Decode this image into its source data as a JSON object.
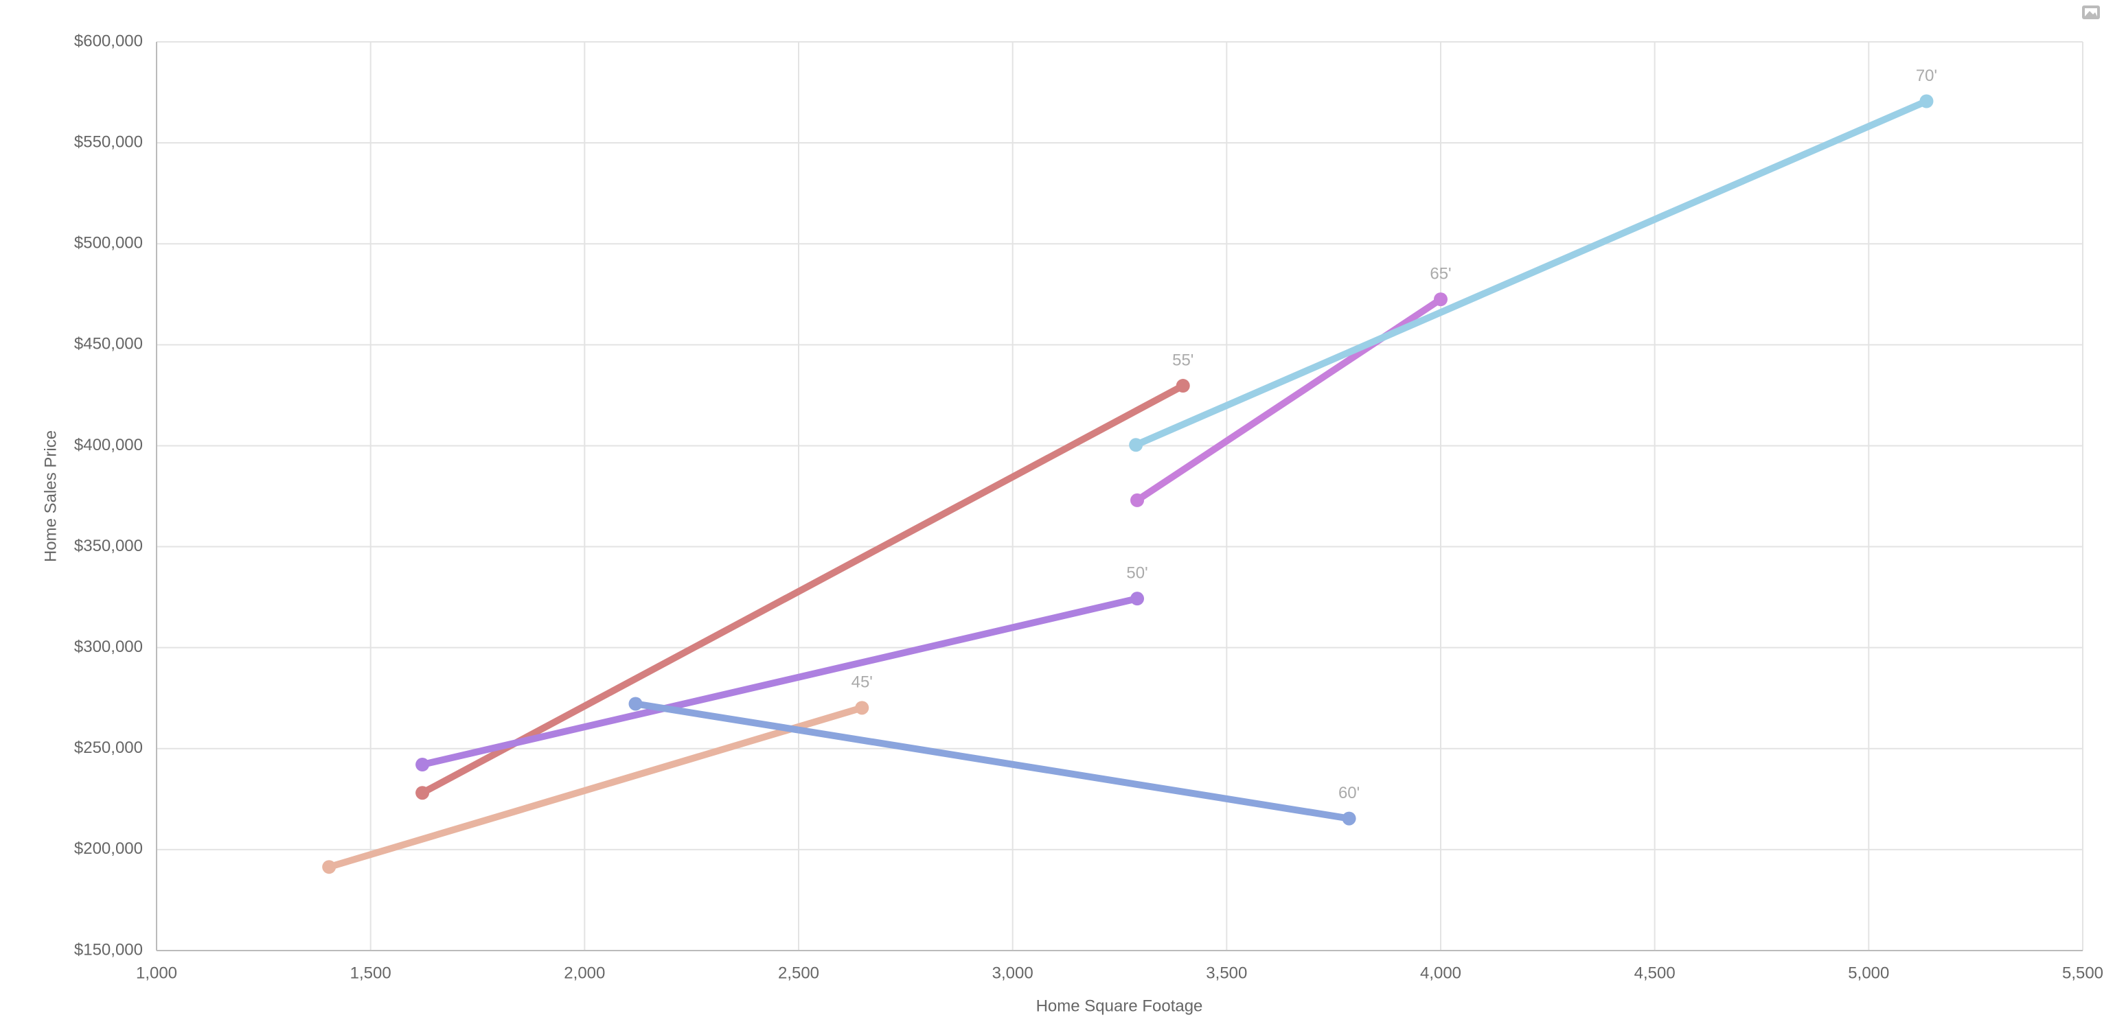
{
  "chart_data": {
    "type": "line",
    "xlabel": "Home Square Footage",
    "ylabel": "Home Sales Price",
    "xlim": [
      1000,
      5500
    ],
    "ylim": [
      150000,
      600000
    ],
    "xticks": [
      {
        "value": 1000,
        "label": "1,000"
      },
      {
        "value": 1500,
        "label": "1,500"
      },
      {
        "value": 2000,
        "label": "2,000"
      },
      {
        "value": 2500,
        "label": "2,500"
      },
      {
        "value": 3000,
        "label": "3,000"
      },
      {
        "value": 3500,
        "label": "3,500"
      },
      {
        "value": 4000,
        "label": "4,000"
      },
      {
        "value": 4500,
        "label": "4,500"
      },
      {
        "value": 5000,
        "label": "5,000"
      },
      {
        "value": 5500,
        "label": "5,500"
      }
    ],
    "yticks": [
      {
        "value": 150000,
        "label": "$150,000"
      },
      {
        "value": 200000,
        "label": "$200,000"
      },
      {
        "value": 250000,
        "label": "$250,000"
      },
      {
        "value": 300000,
        "label": "$300,000"
      },
      {
        "value": 350000,
        "label": "$350,000"
      },
      {
        "value": 400000,
        "label": "$400,000"
      },
      {
        "value": 450000,
        "label": "$450,000"
      },
      {
        "value": 500000,
        "label": "$500,000"
      },
      {
        "value": 550000,
        "label": "$550,000"
      },
      {
        "value": 600000,
        "label": "$600,000"
      }
    ],
    "grid": true,
    "series": [
      {
        "name": "45'",
        "color": "#e8b4a0",
        "x": [
          1403,
          2648
        ],
        "values": [
          191400,
          270200
        ]
      },
      {
        "name": "55'",
        "color": "#d47f7f",
        "x": [
          1621,
          3398
        ],
        "values": [
          228100,
          429700
        ]
      },
      {
        "name": "50'",
        "color": "#ad80e0",
        "x": [
          1621,
          3291
        ],
        "values": [
          242100,
          324300
        ]
      },
      {
        "name": "60'",
        "color": "#8aa4dd",
        "x": [
          2119,
          3786
        ],
        "values": [
          272200,
          215400
        ]
      },
      {
        "name": "65'",
        "color": "#c77fdb",
        "x": [
          3291,
          4000
        ],
        "values": [
          373000,
          472500
        ]
      },
      {
        "name": "70'",
        "color": "#9acfe6",
        "x": [
          3288,
          5135
        ],
        "values": [
          400400,
          570600
        ]
      }
    ]
  }
}
